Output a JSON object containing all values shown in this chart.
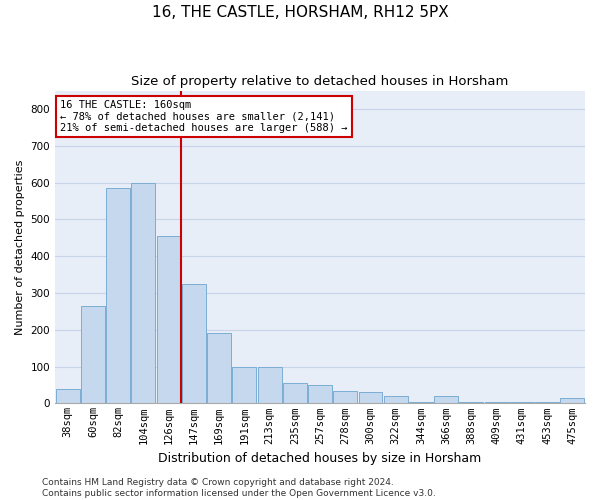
{
  "title": "16, THE CASTLE, HORSHAM, RH12 5PX",
  "subtitle": "Size of property relative to detached houses in Horsham",
  "xlabel": "Distribution of detached houses by size in Horsham",
  "ylabel": "Number of detached properties",
  "categories": [
    "38sqm",
    "60sqm",
    "82sqm",
    "104sqm",
    "126sqm",
    "147sqm",
    "169sqm",
    "191sqm",
    "213sqm",
    "235sqm",
    "257sqm",
    "278sqm",
    "300sqm",
    "322sqm",
    "344sqm",
    "366sqm",
    "388sqm",
    "409sqm",
    "431sqm",
    "453sqm",
    "475sqm"
  ],
  "values": [
    40,
    265,
    585,
    600,
    455,
    325,
    190,
    100,
    100,
    55,
    50,
    35,
    30,
    20,
    5,
    20,
    5,
    5,
    5,
    5,
    15
  ],
  "bar_color": "#c5d8ed",
  "bar_edge_color": "#7badd4",
  "vline_x": 4.5,
  "vline_color": "#cc0000",
  "annotation_text": "16 THE CASTLE: 160sqm\n← 78% of detached houses are smaller (2,141)\n21% of semi-detached houses are larger (588) →",
  "annotation_box_facecolor": "#ffffff",
  "annotation_box_edgecolor": "#cc0000",
  "ylim": [
    0,
    850
  ],
  "yticks": [
    0,
    100,
    200,
    300,
    400,
    500,
    600,
    700,
    800
  ],
  "grid_color": "#c8d4e8",
  "plot_bg": "#e8eef8",
  "fig_bg": "#ffffff",
  "footer": "Contains HM Land Registry data © Crown copyright and database right 2024.\nContains public sector information licensed under the Open Government Licence v3.0.",
  "title_fontsize": 11,
  "subtitle_fontsize": 9.5,
  "xlabel_fontsize": 9,
  "ylabel_fontsize": 8,
  "tick_fontsize": 7.5,
  "annot_fontsize": 7.5,
  "footer_fontsize": 6.5
}
